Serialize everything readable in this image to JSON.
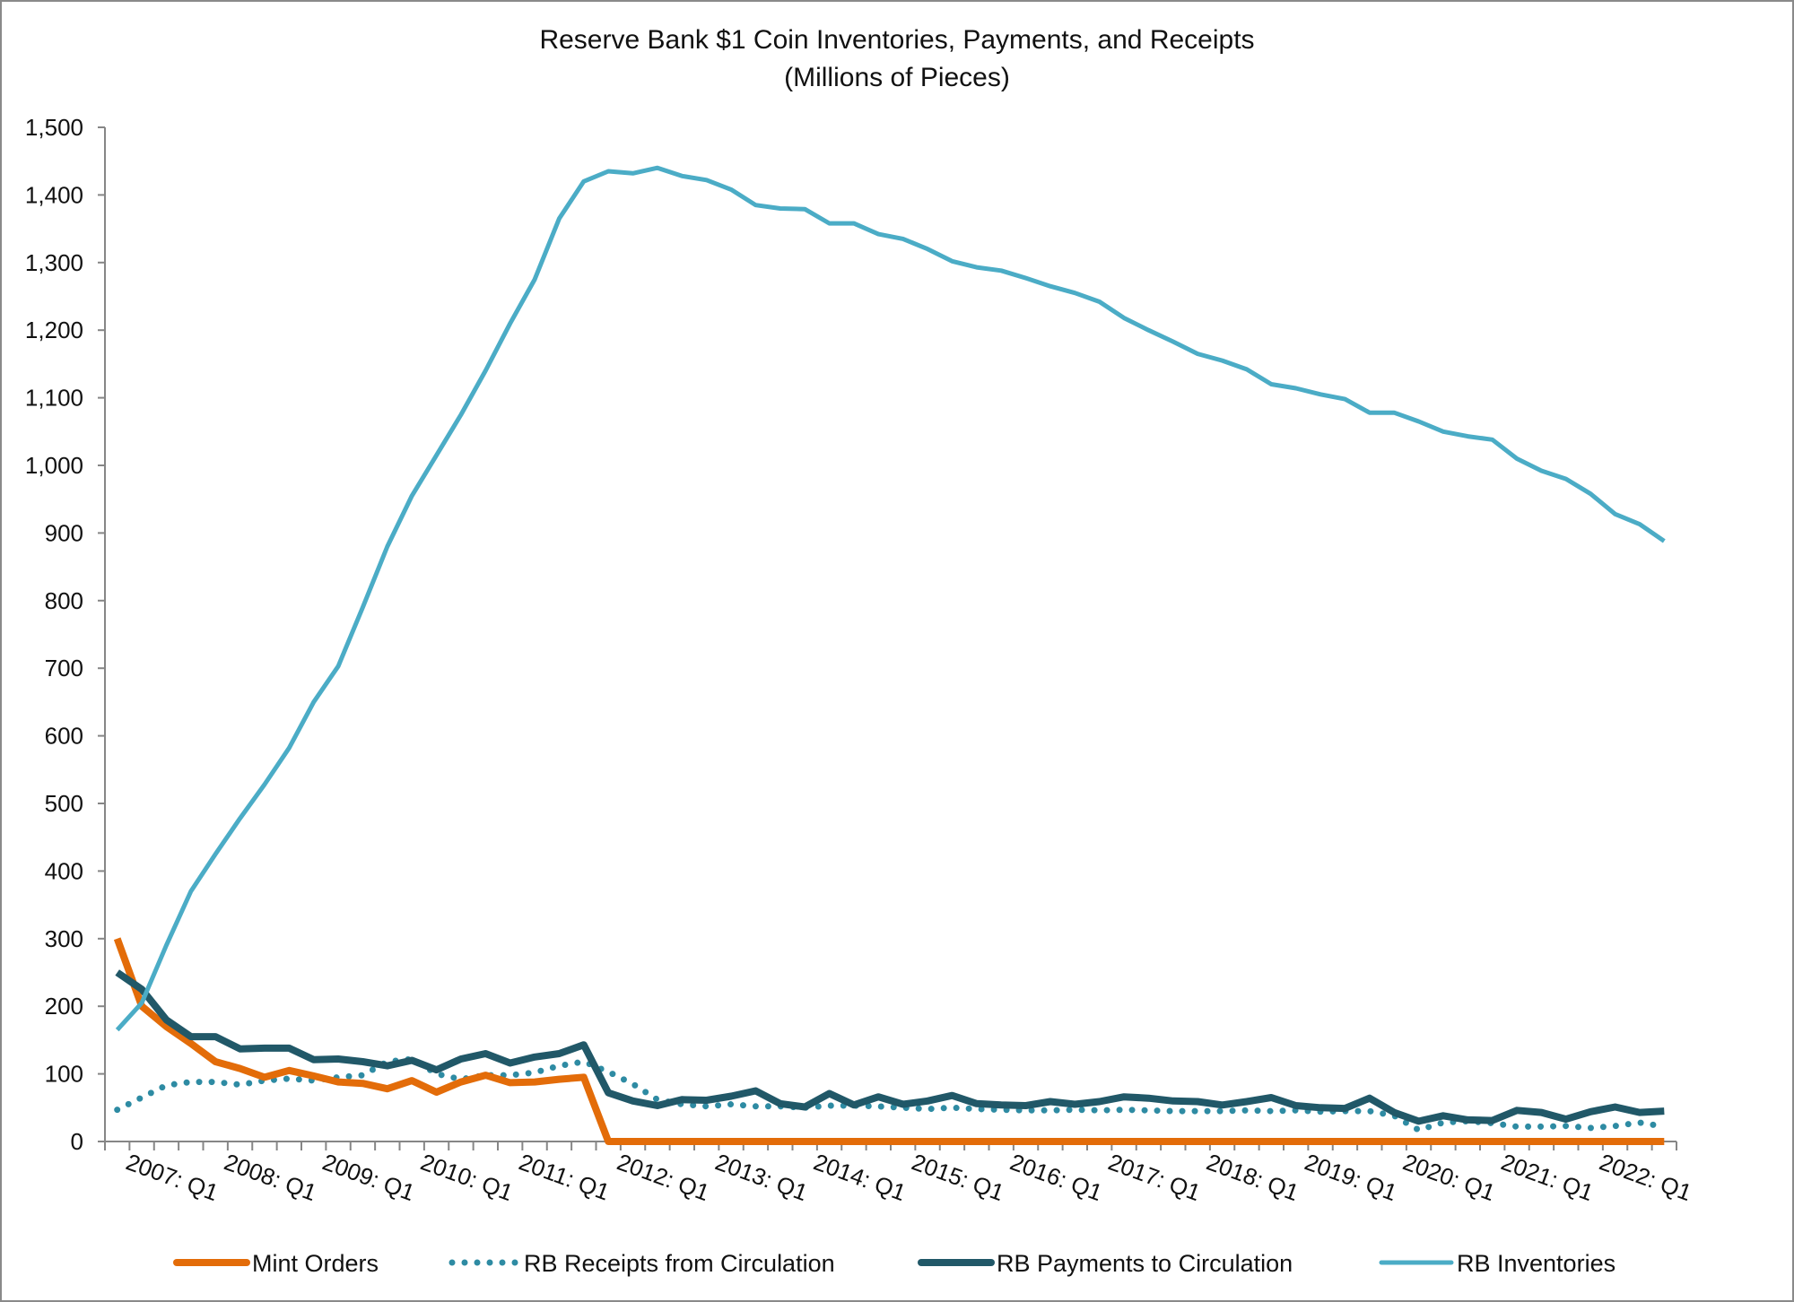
{
  "chart_data": {
    "type": "line",
    "title": "Reserve Bank $1 Coin Inventories, Payments, and Receipts",
    "subtitle": "(Millions of Pieces)",
    "xlabel": "",
    "ylabel": "",
    "ylim": [
      0,
      1500
    ],
    "yticks": [
      "0",
      "100",
      "200",
      "300",
      "400",
      "500",
      "600",
      "700",
      "800",
      "900",
      "1,000",
      "1,100",
      "1,200",
      "1,300",
      "1,400",
      "1,500"
    ],
    "xtick_labels": [
      "2007: Q1",
      "2008: Q1",
      "2009: Q1",
      "2010: Q1",
      "2011: Q1",
      "2012: Q1",
      "2013: Q1",
      "2014: Q1",
      "2015: Q1",
      "2016: Q1",
      "2017: Q1",
      "2018: Q1",
      "2019: Q1",
      "2020: Q1",
      "2021: Q1",
      "2022: Q1"
    ],
    "x_start": "2007: Q1",
    "x_end": "2022: Q4",
    "grid": false,
    "legend_position": "bottom",
    "series": [
      {
        "name": "Mint Orders",
        "color": "#E36C09",
        "style": "solid",
        "values": [
          300,
          200,
          170,
          145,
          118,
          108,
          95,
          105,
          97,
          88,
          86,
          78,
          90,
          73,
          88,
          98,
          87,
          88,
          92,
          95,
          0,
          0,
          0,
          0,
          0,
          0,
          0,
          0,
          0,
          0,
          0,
          0,
          0,
          0,
          0,
          0,
          0,
          0,
          0,
          0,
          0,
          0,
          0,
          0,
          0,
          0,
          0,
          0,
          0,
          0,
          0,
          0,
          0,
          0,
          0,
          0,
          0,
          0,
          0,
          0,
          0,
          0,
          0,
          0
        ]
      },
      {
        "name": "RB Receipts from Circulation",
        "color": "#2E8BA3",
        "style": "dotted",
        "values": [
          47,
          65,
          83,
          88,
          88,
          84,
          90,
          93,
          90,
          95,
          98,
          118,
          122,
          100,
          92,
          98,
          98,
          102,
          112,
          118,
          103,
          85,
          62,
          55,
          52,
          55,
          52,
          52,
          50,
          53,
          53,
          52,
          50,
          48,
          50,
          48,
          47,
          46,
          46,
          47,
          46,
          47,
          46,
          45,
          45,
          45,
          46,
          45,
          46,
          44,
          45,
          45,
          38,
          17,
          28,
          30,
          27,
          22,
          22,
          23,
          20,
          23,
          28,
          22
        ]
      },
      {
        "name": "RB Payments to Circulation",
        "color": "#215868",
        "style": "solid",
        "values": [
          250,
          225,
          180,
          155,
          155,
          137,
          138,
          138,
          121,
          122,
          118,
          112,
          120,
          106,
          122,
          130,
          116,
          125,
          130,
          143,
          72,
          60,
          53,
          62,
          61,
          67,
          75,
          56,
          51,
          71,
          54,
          66,
          55,
          60,
          68,
          56,
          54,
          53,
          59,
          55,
          59,
          66,
          64,
          60,
          59,
          54,
          59,
          65,
          53,
          50,
          49,
          64,
          43,
          30,
          38,
          32,
          31,
          46,
          43,
          33,
          44,
          51,
          43,
          45
        ]
      },
      {
        "name": "RB Inventories",
        "color": "#4BACC6",
        "style": "solid",
        "values": [
          165,
          205,
          290,
          370,
          425,
          478,
          528,
          582,
          650,
          703,
          790,
          880,
          955,
          1015,
          1075,
          1140,
          1210,
          1275,
          1365,
          1420,
          1435,
          1432,
          1440,
          1428,
          1422,
          1408,
          1385,
          1380,
          1379,
          1358,
          1358,
          1342,
          1335,
          1320,
          1302,
          1293,
          1288,
          1277,
          1265,
          1255,
          1242,
          1218,
          1200,
          1183,
          1165,
          1155,
          1142,
          1120,
          1114,
          1105,
          1098,
          1078,
          1078,
          1065,
          1050,
          1043,
          1038,
          1010,
          992,
          980,
          958,
          928,
          913,
          888
        ]
      }
    ]
  }
}
